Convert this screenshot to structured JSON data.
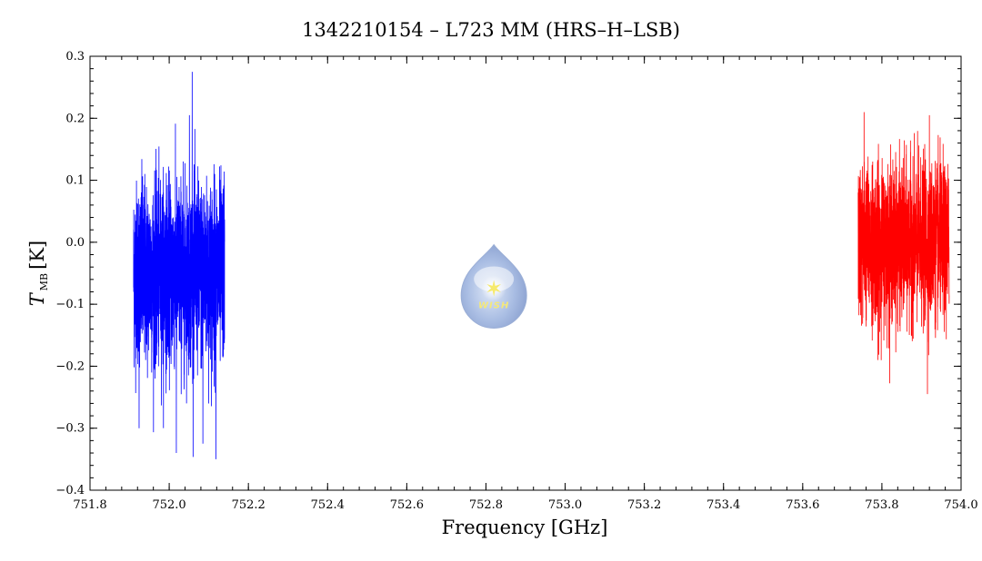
{
  "chart_data": {
    "type": "line",
    "title": "1342210154 – L723 MM (HRS–H–LSB)",
    "xlabel": "Frequency [GHz]",
    "ylabel_main": "T",
    "ylabel_sub": "MB",
    "ylabel_unit": "[K]",
    "xlim": [
      751.8,
      754.0
    ],
    "ylim": [
      -0.4,
      0.3
    ],
    "x_ticks": [
      751.8,
      752.0,
      752.2,
      752.4,
      752.6,
      752.8,
      753.0,
      753.2,
      753.4,
      753.6,
      753.8,
      754.0
    ],
    "x_tick_labels": [
      "751.8",
      "752.0",
      "752.2",
      "752.4",
      "752.6",
      "752.8",
      "753.0",
      "753.2",
      "753.4",
      "753.6",
      "753.8",
      "754.0"
    ],
    "y_ticks": [
      -0.4,
      -0.3,
      -0.2,
      -0.1,
      0.0,
      0.1,
      0.2,
      0.3
    ],
    "y_tick_labels": [
      "−0.4",
      "−0.3",
      "−0.2",
      "−0.1",
      "0.0",
      "0.1",
      "0.2",
      "0.3"
    ],
    "grid": false,
    "series": [
      {
        "color": "#0000ff",
        "x_range": [
          751.91,
          752.14
        ],
        "mean": -0.05,
        "core_range": [
          -0.19,
          0.09
        ],
        "max": 0.275,
        "min": -0.35,
        "spikes": [
          {
            "x": 752.058,
            "y": 0.275
          },
          {
            "x": 752.051,
            "y": 0.205
          },
          {
            "x": 752.118,
            "y": -0.35
          },
          {
            "x": 752.018,
            "y": -0.34
          },
          {
            "x": 751.924,
            "y": -0.3
          },
          {
            "x": 752.085,
            "y": -0.325
          }
        ]
      },
      {
        "color": "#ff0000",
        "x_range": [
          753.74,
          753.97
        ],
        "mean": 0.0,
        "core_range": [
          -0.12,
          0.11
        ],
        "max": 0.21,
        "min": -0.245,
        "spikes": [
          {
            "x": 753.755,
            "y": 0.21
          },
          {
            "x": 753.92,
            "y": 0.205
          },
          {
            "x": 753.915,
            "y": -0.245
          },
          {
            "x": 753.79,
            "y": -0.19
          }
        ]
      }
    ],
    "logo": {
      "text": "WISH",
      "x": 752.82,
      "y": -0.08
    }
  }
}
